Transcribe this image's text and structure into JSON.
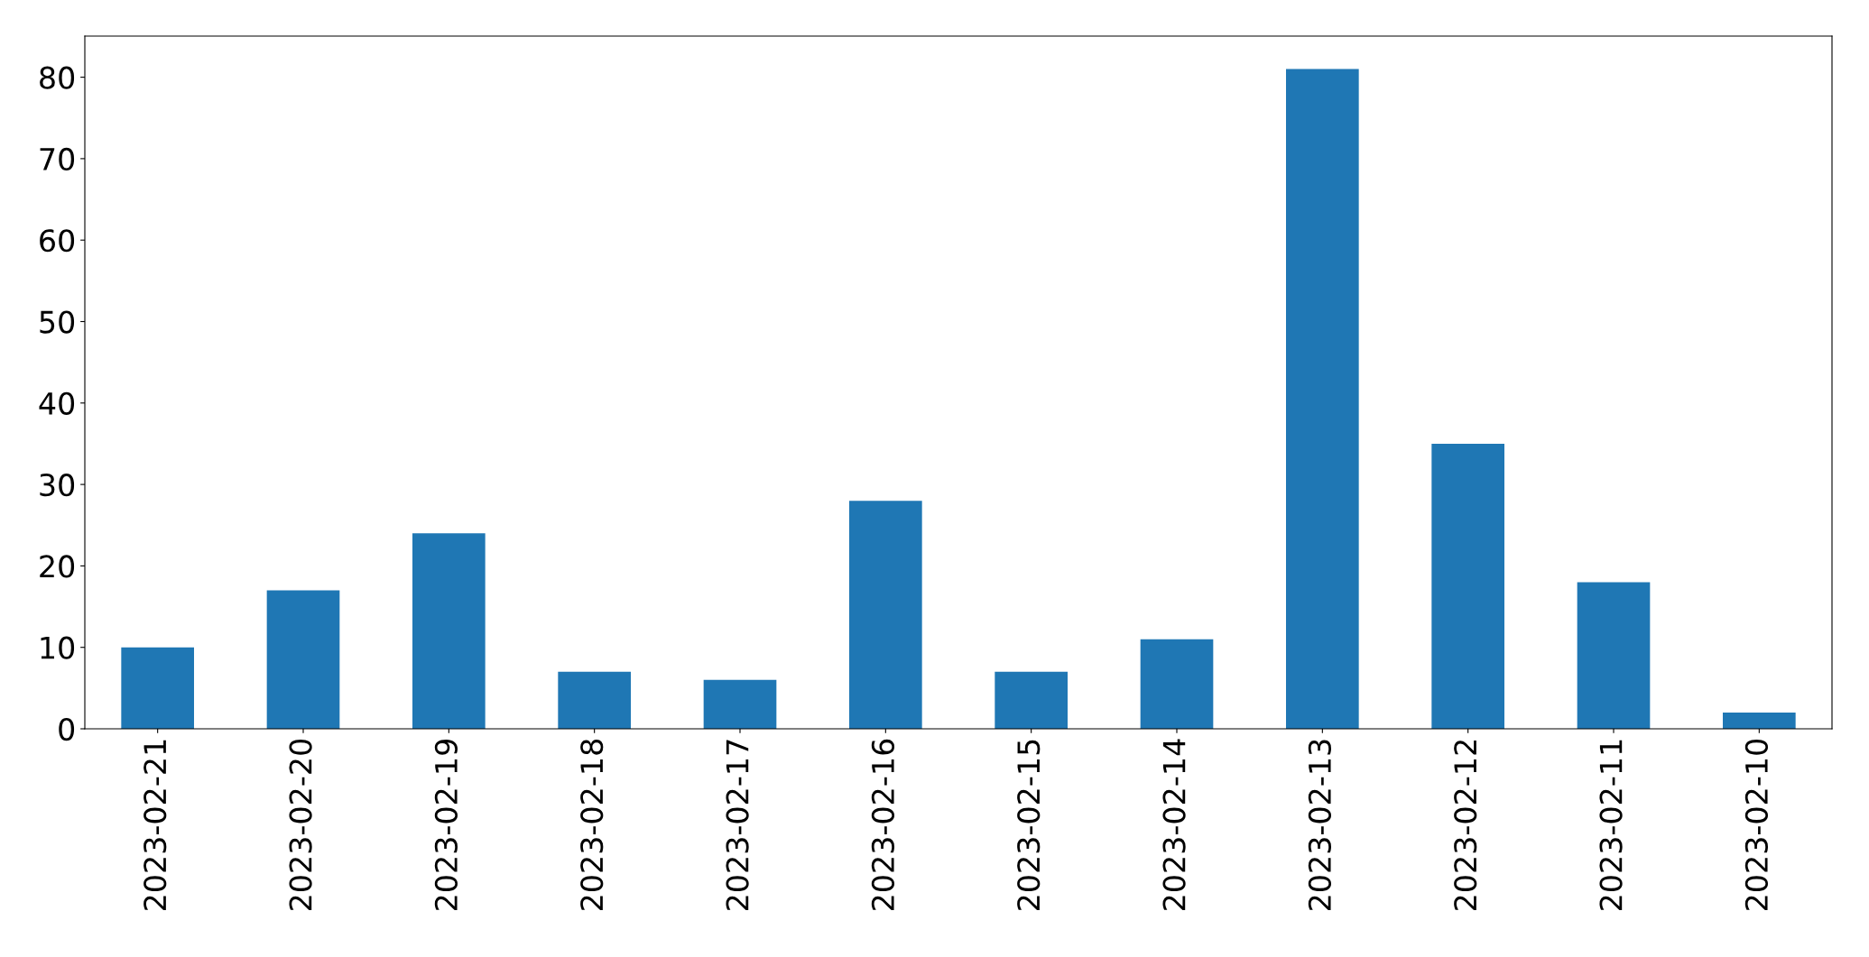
{
  "chart_data": {
    "type": "bar",
    "categories": [
      "2023-02-21",
      "2023-02-20",
      "2023-02-19",
      "2023-02-18",
      "2023-02-17",
      "2023-02-16",
      "2023-02-15",
      "2023-02-14",
      "2023-02-13",
      "2023-02-12",
      "2023-02-11",
      "2023-02-10"
    ],
    "values": [
      10,
      17,
      24,
      7,
      6,
      28,
      7,
      11,
      81,
      35,
      18,
      2
    ],
    "color": "#1f77b4",
    "ylim": [
      0,
      85.05
    ],
    "yticks": [
      0,
      10,
      20,
      30,
      40,
      50,
      60,
      70,
      80
    ],
    "grid": false
  }
}
